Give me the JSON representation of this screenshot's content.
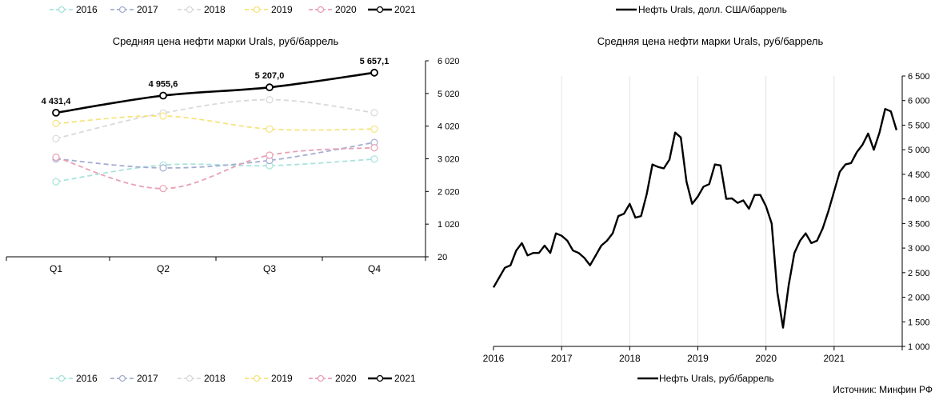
{
  "colors": {
    "s2016": "#a8e4dc",
    "s2017": "#a3aed1",
    "s2018": "#d9d9d9",
    "s2019": "#f5e47e",
    "s2020": "#e8a0b4",
    "s2021": "#000000"
  },
  "source": "Источник: Минфин РФ",
  "chart_data": [
    {
      "type": "line",
      "title": "Средняя цена нефти марки Urals, руб/баррель",
      "categories": [
        "Q1",
        "Q2",
        "Q3",
        "Q4"
      ],
      "ylim": [
        20,
        6020
      ],
      "yticks": [
        "6 020",
        "5 020",
        "4 020",
        "3 020",
        "2 020",
        "1 020",
        "20"
      ],
      "ytick_values": [
        6020,
        5020,
        4020,
        3020,
        2020,
        1020,
        20
      ],
      "legend_position": "top and bottom",
      "series": [
        {
          "name": "2016",
          "values": [
            2320,
            2830,
            2810,
            3010
          ],
          "style": "dashed",
          "color_key": "s2016"
        },
        {
          "name": "2017",
          "values": [
            3020,
            2740,
            2970,
            3520
          ],
          "style": "dashed",
          "color_key": "s2017"
        },
        {
          "name": "2018",
          "values": [
            3640,
            4420,
            4830,
            4430
          ],
          "style": "dashed",
          "color_key": "s2018"
        },
        {
          "name": "2019",
          "values": [
            4100,
            4330,
            3930,
            3930
          ],
          "style": "dashed",
          "color_key": "s2019"
        },
        {
          "name": "2020",
          "values": [
            3070,
            2110,
            3130,
            3360
          ],
          "style": "dashed",
          "color_key": "s2020"
        },
        {
          "name": "2021",
          "values": [
            4431.4,
            4955.6,
            5207.0,
            5657.1
          ],
          "style": "solid",
          "color_key": "s2021",
          "labels": [
            "4 431,4",
            "4 955,6",
            "5 207,0",
            "5 657,1"
          ]
        }
      ]
    },
    {
      "type": "line",
      "title": "Средняя цена нефти марки Urals, руб/баррель",
      "top_legend": "Нефть Urals, долл. США/баррель",
      "legend": "Нефть Urals, руб/баррель",
      "x_start": 2016,
      "x_end": 2022,
      "xtick_labels": [
        "2016",
        "2017",
        "2018",
        "2019",
        "2020",
        "2021"
      ],
      "ylim": [
        1000,
        6500
      ],
      "yticks": [
        "6 500",
        "6 000",
        "5 500",
        "5 000",
        "4 500",
        "4 000",
        "3 500",
        "3 000",
        "2 500",
        "2 000",
        "1 500",
        "1 000"
      ],
      "ytick_values": [
        6500,
        6000,
        5500,
        5000,
        4500,
        4000,
        3500,
        3000,
        2500,
        2000,
        1500,
        1000
      ],
      "grid": "vertical",
      "series": [
        {
          "name": "Нефть Urals, руб/баррель",
          "start": "2016-01",
          "frequency": "monthly",
          "values": [
            2200,
            2400,
            2600,
            2650,
            2950,
            3100,
            2850,
            2900,
            2900,
            3050,
            2900,
            3300,
            3250,
            3150,
            2950,
            2900,
            2800,
            2650,
            2850,
            3050,
            3150,
            3300,
            3650,
            3700,
            3900,
            3620,
            3650,
            4100,
            4700,
            4650,
            4620,
            4800,
            5350,
            5250,
            4350,
            3900,
            4050,
            4250,
            4300,
            4700,
            4680,
            4000,
            4010,
            3920,
            3970,
            3800,
            4080,
            4080,
            3850,
            3500,
            2100,
            1380,
            2250,
            2900,
            3150,
            3300,
            3100,
            3150,
            3400,
            3750,
            4150,
            4550,
            4700,
            4730,
            4950,
            5100,
            5330,
            5000,
            5350,
            5830,
            5780,
            5400
          ]
        }
      ]
    }
  ]
}
